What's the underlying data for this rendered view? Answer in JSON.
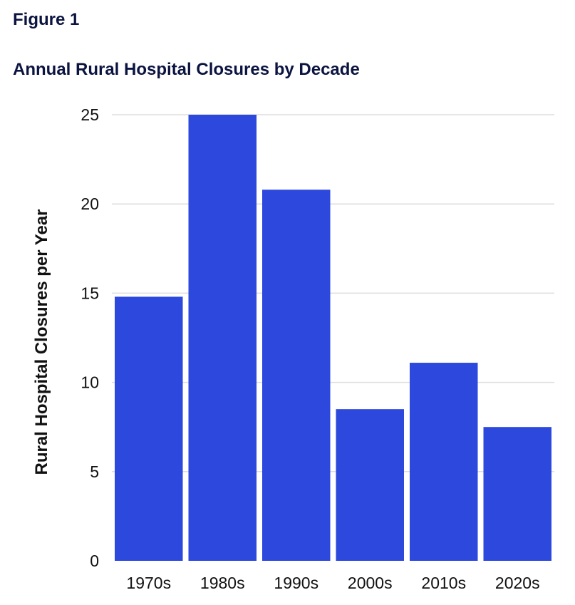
{
  "figure_label": "Figure 1",
  "chart_data": {
    "type": "bar",
    "title": "Annual Rural Hospital Closures by Decade",
    "xlabel": "",
    "ylabel": "Rural Hospital Closures per Year",
    "categories": [
      "1970s",
      "1980s",
      "1990s",
      "2000s",
      "2010s",
      "2020s"
    ],
    "values": [
      14.8,
      25.0,
      20.8,
      8.5,
      11.1,
      7.5
    ],
    "ylim": [
      0,
      25
    ],
    "yticks": [
      0,
      5,
      10,
      15,
      20,
      25
    ],
    "grid": true,
    "legend": "none",
    "colors": {
      "bar": "#2d48dd",
      "grid": "#dddddd",
      "title": "#0b1440"
    }
  }
}
